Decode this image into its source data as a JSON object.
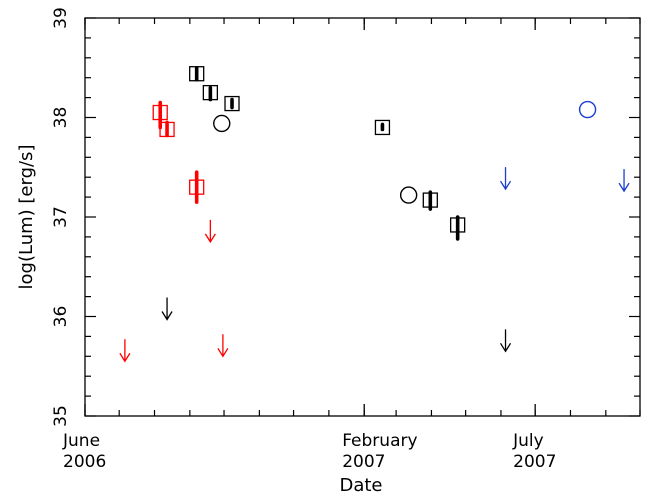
{
  "chart_data": {
    "type": "scatter",
    "xlabel": "Date",
    "ylabel": "log(Lum) [erg/s]",
    "ylim": [
      35,
      39
    ],
    "xlim": [
      "2006-06-01",
      "2007-10-01"
    ],
    "x_ticks": [
      {
        "date": "2006-06-01",
        "line1": "June",
        "line2": "2006"
      },
      {
        "date": "2007-02-01",
        "line1": "February",
        "line2": "2007"
      },
      {
        "date": "2007-07-01",
        "line1": "July",
        "line2": "2007"
      }
    ],
    "y_ticks": [
      {
        "value": 35,
        "label": "35"
      },
      {
        "value": 36,
        "label": "36"
      },
      {
        "value": 37,
        "label": "37"
      },
      {
        "value": 38,
        "label": "38"
      },
      {
        "value": 39,
        "label": "39"
      }
    ],
    "series": [
      {
        "color": "#ff0000",
        "detections": [
          {
            "date": "2006-08-06",
            "y": 38.05,
            "ylo": 37.9,
            "yhi": 38.15
          },
          {
            "date": "2006-08-12",
            "y": 37.88,
            "ylo": 37.82,
            "yhi": 37.95
          },
          {
            "date": "2006-09-07",
            "y": 37.3,
            "ylo": 37.15,
            "yhi": 37.45
          }
        ],
        "upper_limits": [
          {
            "date": "2006-07-06",
            "y": 35.55
          },
          {
            "date": "2006-09-19",
            "y": 36.75
          },
          {
            "date": "2006-09-30",
            "y": 35.6
          }
        ]
      },
      {
        "color": "#000000",
        "detections": [
          {
            "date": "2006-09-07",
            "y": 38.44,
            "ylo": 38.38,
            "yhi": 38.5
          },
          {
            "date": "2006-09-19",
            "y": 38.25,
            "ylo": 38.18,
            "yhi": 38.3
          },
          {
            "date": "2006-10-08",
            "y": 38.14,
            "ylo": 38.1,
            "yhi": 38.18
          },
          {
            "date": "2007-02-17",
            "y": 37.9,
            "ylo": 37.88,
            "yhi": 37.93
          },
          {
            "date": "2007-03-31",
            "y": 37.17,
            "ylo": 37.08,
            "yhi": 37.25
          },
          {
            "date": "2007-04-24",
            "y": 36.92,
            "ylo": 36.78,
            "yhi": 37.0
          }
        ],
        "circles": [
          {
            "date": "2006-09-29",
            "y": 37.94
          },
          {
            "date": "2007-03-12",
            "y": 37.22
          }
        ],
        "upper_limits": [
          {
            "date": "2006-08-12",
            "y": 35.97
          },
          {
            "date": "2007-06-05",
            "y": 35.65
          }
        ]
      },
      {
        "color": "#1a3fd0",
        "circles": [
          {
            "date": "2007-08-16",
            "y": 38.08
          }
        ],
        "upper_limits": [
          {
            "date": "2007-06-05",
            "y": 37.28
          },
          {
            "date": "2007-09-17",
            "y": 37.26
          }
        ]
      }
    ]
  }
}
